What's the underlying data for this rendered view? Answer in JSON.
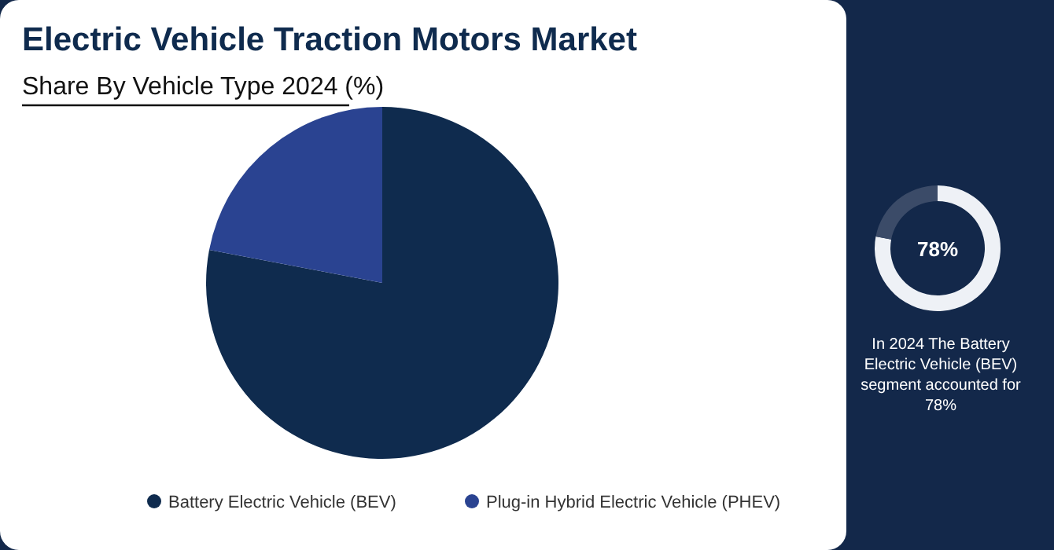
{
  "chart_data": [
    {
      "type": "pie",
      "title": "Electric Vehicle Traction Motors Market",
      "subtitle": "Share By Vehicle Type 2024 (%)",
      "categories": [
        "Battery Electric Vehicle (BEV)",
        "Plug-in Hybrid Electric Vehicle (PHEV)"
      ],
      "values": [
        78,
        22
      ],
      "colors": [
        "#0f2b4e",
        "#2a4391"
      ],
      "legend": "bottom"
    },
    {
      "type": "donut",
      "categories": [
        null,
        null
      ],
      "values": [
        78,
        22
      ],
      "colors": [
        "#eef1f6",
        "#3b4b68"
      ],
      "value_labels": [
        "78%",
        null
      ],
      "annotations": [
        "In 2024 The Battery Electric Vehicle (BEV) segment accounted for 78%"
      ]
    }
  ]
}
